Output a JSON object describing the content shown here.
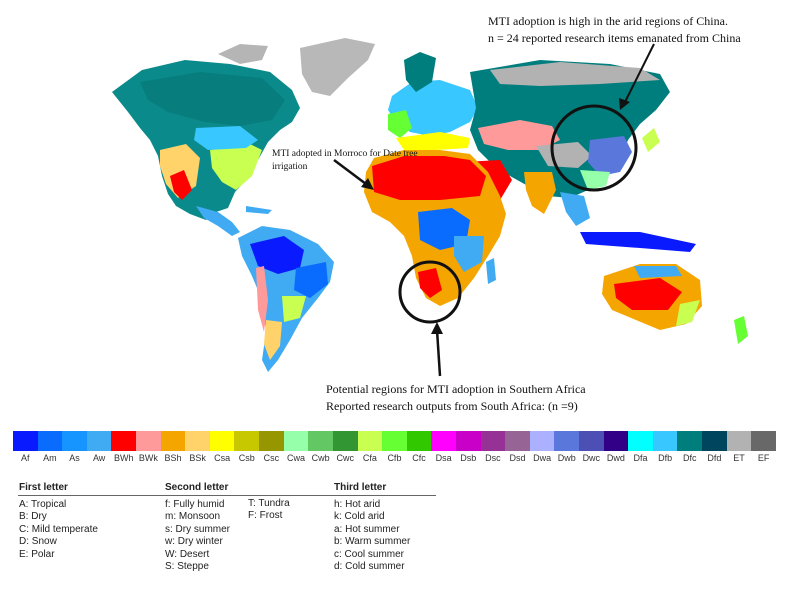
{
  "annotations": {
    "china_line1": "MTI adoption is high in the arid regions of China.",
    "china_line2": "n = 24 reported research items emanated from China",
    "morocco": "MTI adopted in Morroco for Date tree irrigation",
    "safrica_line1": "Potential regions for MTI adoption in Southern Africa",
    "safrica_line2": "Reported  research outputs from South Africa: (n =9)"
  },
  "legend": [
    {
      "code": "Af",
      "color": "#0a1aff"
    },
    {
      "code": "Am",
      "color": "#0a6cff"
    },
    {
      "code": "As",
      "color": "#1694ff"
    },
    {
      "code": "Aw",
      "color": "#40aaf2"
    },
    {
      "code": "BWh",
      "color": "#ff0000"
    },
    {
      "code": "BWk",
      "color": "#ff9a9a"
    },
    {
      "code": "BSh",
      "color": "#f5a500"
    },
    {
      "code": "BSk",
      "color": "#ffd369"
    },
    {
      "code": "Csa",
      "color": "#ffff00"
    },
    {
      "code": "Csb",
      "color": "#c8c800"
    },
    {
      "code": "Csc",
      "color": "#969600"
    },
    {
      "code": "Cwa",
      "color": "#96ffaa"
    },
    {
      "code": "Cwb",
      "color": "#63c764"
    },
    {
      "code": "Cwc",
      "color": "#329633"
    },
    {
      "code": "Cfa",
      "color": "#c8ff50"
    },
    {
      "code": "Cfb",
      "color": "#66ff33"
    },
    {
      "code": "Cfc",
      "color": "#32c800"
    },
    {
      "code": "Dsa",
      "color": "#ff00fe"
    },
    {
      "code": "Dsb",
      "color": "#c900c8"
    },
    {
      "code": "Dsc",
      "color": "#963295"
    },
    {
      "code": "Dsd",
      "color": "#966495"
    },
    {
      "code": "Dwa",
      "color": "#abb1ff"
    },
    {
      "code": "Dwb",
      "color": "#5a78dc"
    },
    {
      "code": "Dwc",
      "color": "#4c50b4"
    },
    {
      "code": "Dwd",
      "color": "#320087"
    },
    {
      "code": "Dfa",
      "color": "#00ffff"
    },
    {
      "code": "Dfb",
      "color": "#38c7ff"
    },
    {
      "code": "Dfc",
      "color": "#007e7d"
    },
    {
      "code": "Dfd",
      "color": "#00455e"
    },
    {
      "code": "ET",
      "color": "#b2b2b2"
    },
    {
      "code": "EF",
      "color": "#686868"
    }
  ],
  "key": {
    "first": {
      "title": "First letter",
      "items": [
        "A: Tropical",
        "B: Dry",
        "C: Mild temperate",
        "D: Snow",
        "E: Polar"
      ]
    },
    "second": {
      "title": "Second letter",
      "items": [
        "f:  Fully humid",
        "m: Monsoon",
        "s:  Dry summer",
        "w: Dry winter",
        "W: Desert",
        "S:  Steppe"
      ]
    },
    "second_b": {
      "items": [
        "T:  Tundra",
        "F:  Frost"
      ]
    },
    "third": {
      "title": "Third letter",
      "items": [
        "h:  Hot arid",
        "k:  Cold arid",
        "a:  Hot summer",
        "b:  Warm summer",
        "c:  Cool summer",
        "d:  Cold summer"
      ]
    }
  }
}
